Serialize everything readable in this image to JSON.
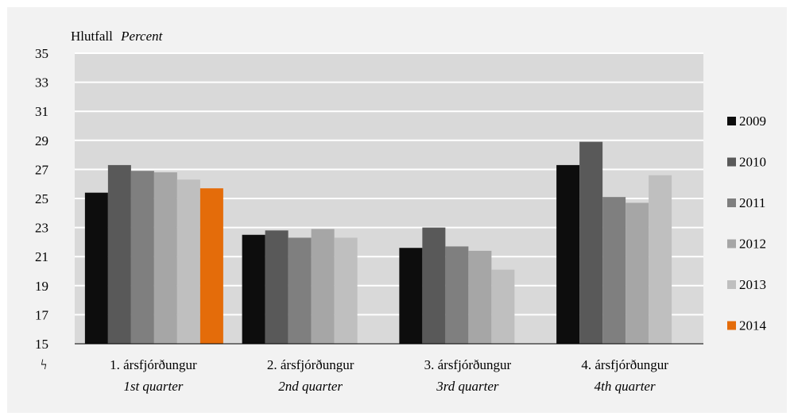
{
  "chart_data": {
    "type": "bar",
    "ylabel": "Hlutfall",
    "ylabel_en": "Percent",
    "ylim": [
      15,
      35
    ],
    "yticks": [
      15,
      17,
      19,
      21,
      23,
      25,
      27,
      29,
      31,
      33,
      35
    ],
    "axis_break_symbol": "ϟ",
    "grid": true,
    "legend_placement": "right",
    "categories": [
      {
        "label": "1. ársfjórðungur",
        "label_en": "1st quarter"
      },
      {
        "label": "2. ársfjórðungur",
        "label_en": "2nd quarter"
      },
      {
        "label": "3. ársfjórðungur",
        "label_en": "3rd quarter"
      },
      {
        "label": "4. ársfjórðungur",
        "label_en": "4th quarter"
      }
    ],
    "series": [
      {
        "name": "2009",
        "color": "#0d0d0d",
        "values": [
          25.4,
          22.5,
          21.6,
          27.3
        ]
      },
      {
        "name": "2010",
        "color": "#595959",
        "values": [
          27.3,
          22.8,
          23.0,
          28.9
        ]
      },
      {
        "name": "2011",
        "color": "#7f7f7f",
        "values": [
          26.9,
          22.3,
          21.7,
          25.1
        ]
      },
      {
        "name": "2012",
        "color": "#a6a6a6",
        "values": [
          26.8,
          22.9,
          21.4,
          24.7
        ]
      },
      {
        "name": "2013",
        "color": "#bfbfbf",
        "values": [
          26.3,
          22.3,
          20.1,
          26.6
        ]
      },
      {
        "name": "2014",
        "color": "#e46c0a",
        "values": [
          25.7,
          null,
          null,
          null
        ]
      }
    ]
  }
}
